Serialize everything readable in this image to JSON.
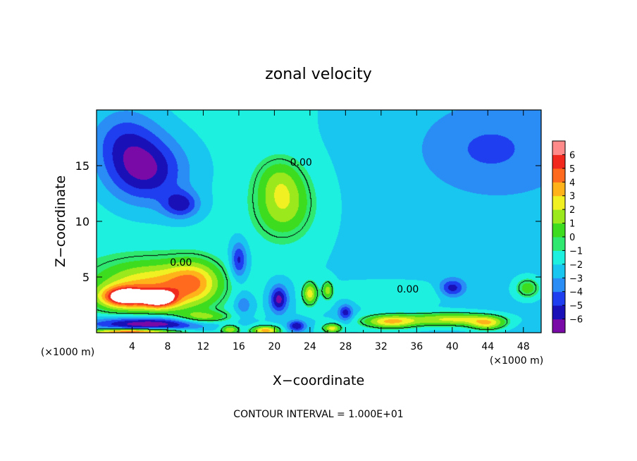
{
  "chart_data": {
    "type": "heatmap",
    "title": "zonal velocity",
    "xlabel": "X−coordinate",
    "ylabel": "Z−coordinate",
    "x_units_left": "(×1000 m)",
    "x_units_right": "(×1000 m)",
    "xlim": [
      0,
      50
    ],
    "ylim": [
      0,
      20
    ],
    "xticks": [
      4,
      8,
      12,
      16,
      20,
      24,
      28,
      32,
      36,
      40,
      44,
      48
    ],
    "xtick_labels": [
      "4",
      "8",
      "12",
      "16",
      "20",
      "24",
      "28",
      "32",
      "36",
      "40",
      "44",
      "48"
    ],
    "yticks": [
      5,
      10,
      15
    ],
    "ytick_labels": [
      "5",
      "10",
      "15"
    ],
    "footer": "CONTOUR INTERVAL = 1.000E+01",
    "contour_label": "0.00",
    "colorbar": {
      "min": -6,
      "max": 6,
      "ticks": [
        6,
        5,
        4,
        3,
        2,
        1,
        0,
        -1,
        -2,
        -3,
        -4,
        -5,
        -6
      ],
      "tick_labels": [
        "6",
        "5",
        "4",
        "3",
        "2",
        "1",
        "0",
        "−1",
        "−2",
        "−3",
        "−4",
        "−5",
        "−6"
      ]
    },
    "features": [
      {
        "x": 5.5,
        "z": 14.5,
        "value": -4.3,
        "rx": 4.5,
        "rz": 3.0
      },
      {
        "x": 9.5,
        "z": 11.5,
        "value": -3.5,
        "rx": 2.0,
        "rz": 1.2
      },
      {
        "x": 3.0,
        "z": 17.5,
        "value": -2.5,
        "rx": 4.0,
        "rz": 3.0
      },
      {
        "x": 21.0,
        "z": 11.5,
        "value": 3.8,
        "rx": 3.2,
        "rz": 3.0
      },
      {
        "x": 20.5,
        "z": 14.0,
        "value": 1.5,
        "rx": 2.5,
        "rz": 2.0
      },
      {
        "x": 44.0,
        "z": 16.5,
        "value": -1.8,
        "rx": 8.0,
        "rz": 4.0
      },
      {
        "x": 6.0,
        "z": 4.2,
        "value": 4.8,
        "rx": 6.0,
        "rz": 2.2
      },
      {
        "x": 3.0,
        "z": 3.2,
        "value": 7.0,
        "rx": 2.5,
        "rz": 0.9
      },
      {
        "x": 7.0,
        "z": 3.0,
        "value": 6.5,
        "rx": 2.0,
        "rz": 0.8
      },
      {
        "x": 11.0,
        "z": 4.5,
        "value": 4.0,
        "rx": 3.0,
        "rz": 2.0
      },
      {
        "x": 6.0,
        "z": 0.8,
        "value": -5.5,
        "rx": 7.0,
        "rz": 0.6
      },
      {
        "x": 4.0,
        "z": 0.1,
        "value": 7.0,
        "rx": 5.0,
        "rz": 0.25
      },
      {
        "x": 12.0,
        "z": 1.3,
        "value": 3.5,
        "rx": 3.0,
        "rz": 0.6
      },
      {
        "x": 16.0,
        "z": 6.5,
        "value": -3.5,
        "rx": 0.9,
        "rz": 1.6
      },
      {
        "x": 16.5,
        "z": 2.5,
        "value": -2.0,
        "rx": 1.0,
        "rz": 1.0
      },
      {
        "x": 20.5,
        "z": 3.0,
        "value": -4.5,
        "rx": 1.0,
        "rz": 1.2
      },
      {
        "x": 24.0,
        "z": 3.5,
        "value": 4.5,
        "rx": 0.8,
        "rz": 1.0
      },
      {
        "x": 26.0,
        "z": 3.8,
        "value": 3.5,
        "rx": 0.6,
        "rz": 0.8
      },
      {
        "x": 28.0,
        "z": 1.8,
        "value": -3.5,
        "rx": 0.8,
        "rz": 0.7
      },
      {
        "x": 33.0,
        "z": 1.0,
        "value": 5.0,
        "rx": 3.0,
        "rz": 0.6
      },
      {
        "x": 40.0,
        "z": 1.2,
        "value": 4.5,
        "rx": 5.0,
        "rz": 0.6
      },
      {
        "x": 40.0,
        "z": 4.0,
        "value": -3.5,
        "rx": 1.4,
        "rz": 0.8
      },
      {
        "x": 44.0,
        "z": 0.8,
        "value": 4.0,
        "rx": 2.0,
        "rz": 0.6
      },
      {
        "x": 48.5,
        "z": 4.0,
        "value": 3.0,
        "rx": 1.5,
        "rz": 1.0
      },
      {
        "x": 19.0,
        "z": 0.2,
        "value": 5.5,
        "rx": 1.5,
        "rz": 0.4
      },
      {
        "x": 22.5,
        "z": 0.6,
        "value": -4.0,
        "rx": 1.0,
        "rz": 0.5
      },
      {
        "x": 26.5,
        "z": 0.4,
        "value": 4.5,
        "rx": 1.0,
        "rz": 0.4
      },
      {
        "x": 15.0,
        "z": 0.3,
        "value": 4.0,
        "rx": 1.0,
        "rz": 0.4
      },
      {
        "x": 35.0,
        "z": 3.5,
        "value": 1.0,
        "rx": 6.0,
        "rz": 1.0
      }
    ],
    "background": {
      "base": -1.0,
      "x_gradient": -0.02
    }
  }
}
